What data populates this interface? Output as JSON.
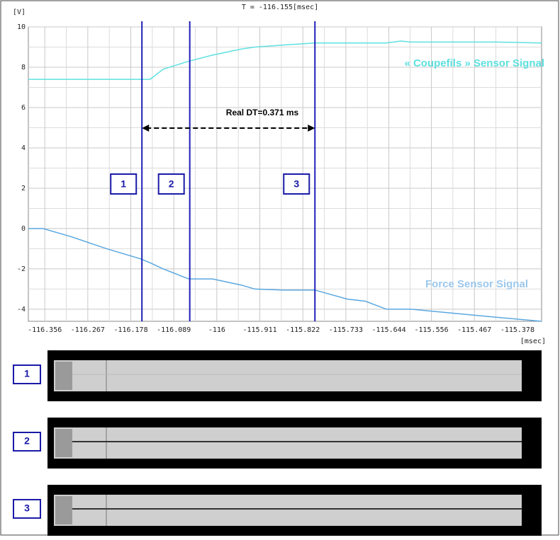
{
  "chart_data": {
    "type": "line",
    "title": "T = -116.155[msec]",
    "y_unit": "[V]",
    "x_unit": "[msec]",
    "annotation": "Real DT=0.371 ms",
    "x": [
      -116.39,
      -116.36,
      -116.302,
      -116.228,
      -116.158,
      -116.138,
      -116.111,
      -116.058,
      -116.009,
      -115.95,
      -115.921,
      -115.862,
      -115.797,
      -115.73,
      -115.693,
      -115.649,
      -115.62,
      -115.598,
      -115.51,
      -115.422,
      -115.328
    ],
    "series": [
      {
        "name": "« Coupefils » Sensor Signal",
        "color": "#5ee0e0",
        "values": [
          7.4,
          7.4,
          7.4,
          7.4,
          7.4,
          7.4,
          7.9,
          8.3,
          8.6,
          8.9,
          9.0,
          9.1,
          9.2,
          9.2,
          9.2,
          9.2,
          9.3,
          9.25,
          9.25,
          9.25,
          9.2
        ]
      },
      {
        "name": "Force Sensor Signal",
        "color": "#5aa8e0",
        "values": [
          0,
          0,
          -0.4,
          -1.0,
          -1.5,
          -1.7,
          -2.0,
          -2.5,
          -2.5,
          -2.8,
          -3.0,
          -3.05,
          -3.05,
          -3.5,
          -3.6,
          -4.0,
          -4.0,
          -4.0,
          -4.2,
          -4.4,
          -4.6
        ]
      }
    ],
    "cursors": [
      {
        "label": "1",
        "x": -116.155
      },
      {
        "label": "2",
        "x": -116.056
      },
      {
        "label": "3",
        "x": -115.797
      }
    ],
    "xlim": [
      -116.39,
      -115.328
    ],
    "xticks": [
      -116.356,
      -116.267,
      -116.178,
      -116.089,
      -116,
      -115.911,
      -115.822,
      -115.733,
      -115.644,
      -115.556,
      -115.467,
      -115.378
    ],
    "ylim": [
      -4.6,
      10
    ],
    "yticks": [
      -4,
      -2,
      0,
      2,
      4,
      6,
      8,
      10
    ],
    "grid": true
  },
  "panels": [
    {
      "label": "1"
    },
    {
      "label": "2"
    },
    {
      "label": "3"
    }
  ]
}
